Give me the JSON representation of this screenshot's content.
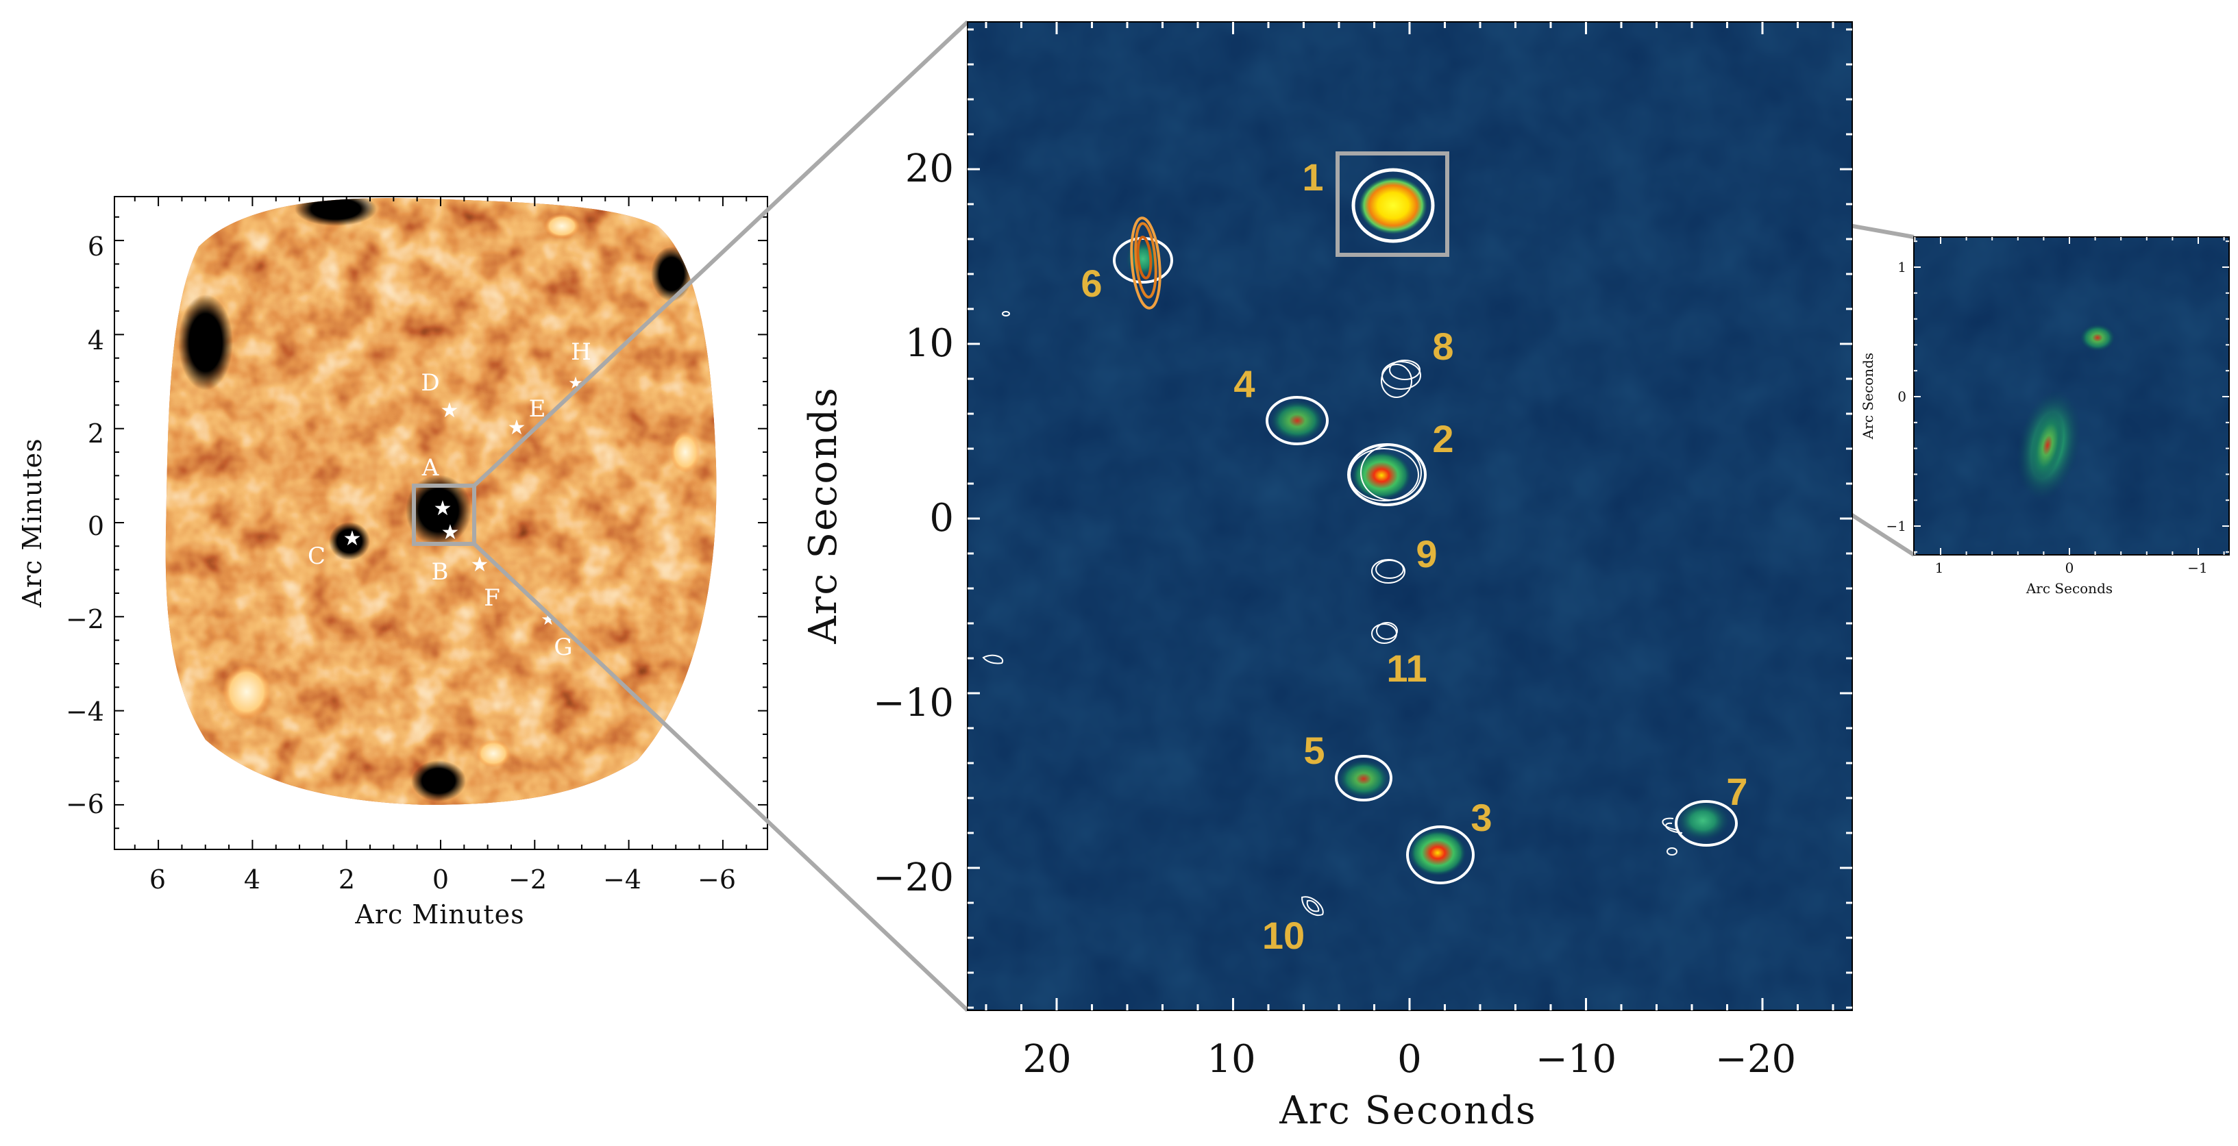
{
  "left_panel": {
    "xlabel": "Arc Minutes",
    "ylabel": "Arc Minutes",
    "x_ticks": [
      "6",
      "4",
      "2",
      "0",
      "−2",
      "−4",
      "−6"
    ],
    "y_ticks": [
      "6",
      "4",
      "2",
      "0",
      "−2",
      "−4",
      "−6"
    ],
    "star_labels": [
      "A",
      "B",
      "C",
      "D",
      "E",
      "F",
      "G",
      "H"
    ],
    "colormap": "black-red-orange-yellow-white"
  },
  "middle_panel": {
    "xlabel": "Arc Seconds",
    "ylabel": "Arc Seconds",
    "x_ticks": [
      "20",
      "10",
      "0",
      "−10",
      "−20"
    ],
    "y_ticks": [
      "20",
      "10",
      "0",
      "−10",
      "−20"
    ],
    "source_labels": [
      "1",
      "2",
      "3",
      "4",
      "5",
      "6",
      "7",
      "8",
      "9",
      "10",
      "11"
    ],
    "colormap": "navy-green-red-yellow"
  },
  "right_panel": {
    "xlabel": "Arc Seconds",
    "ylabel": "Arc Seconds",
    "x_ticks": [
      "1",
      "0",
      "−1"
    ],
    "y_ticks": [
      "1",
      "0",
      "−1"
    ]
  },
  "colors": {
    "zoom_lines": "#a9a9a9",
    "source_label": "#e3b43c",
    "sky_background": "#0b2f5c",
    "map_background": "#d2551c"
  }
}
